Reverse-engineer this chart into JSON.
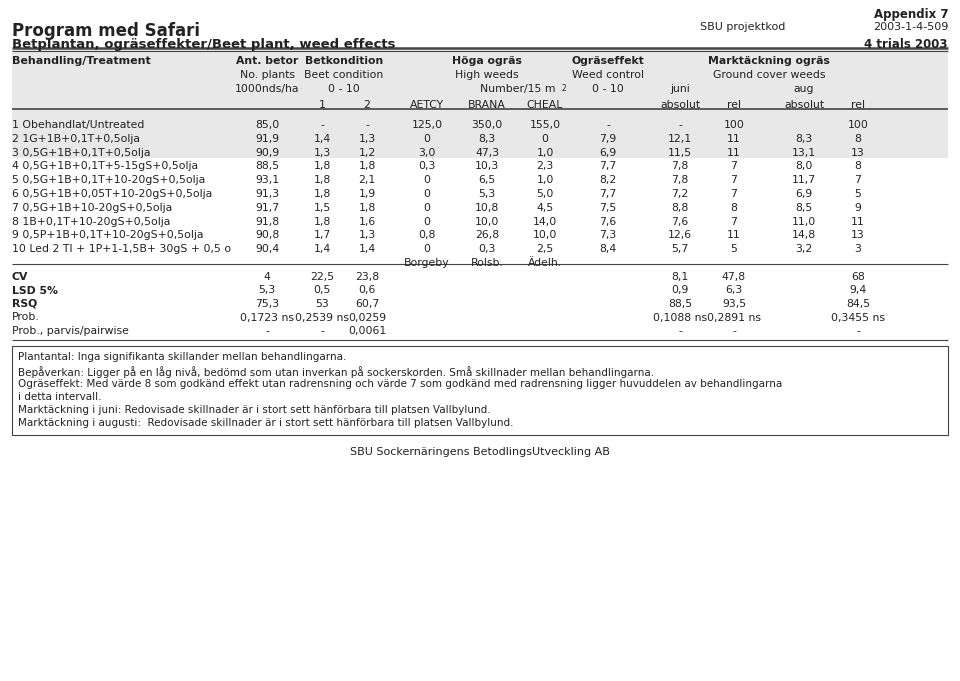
{
  "title_left": "Program med Safari",
  "subtitle_left": "Betplantan, ogräseffekter/Beet plant, weed effects",
  "top_right1": "Appendix 7",
  "top_right2_label": "SBU projektkod",
  "top_right2_value": "2003-1-4-509",
  "top_right3": "4 trials 2003",
  "col_headers": [
    [
      "Ant. betor",
      "Betkondition",
      "Höga ogräs",
      "Ogräseffekt",
      "Marktäckning ogräs"
    ],
    [
      "No. plants",
      "Beet condition",
      "High weeds",
      "Weed control",
      "Ground cover weeds"
    ],
    [
      "1000nds/ha",
      "0 - 10",
      "Number/15 m²",
      "0 - 10",
      "juni",
      "aug"
    ]
  ],
  "subheaders": [
    "1",
    "2",
    "AETCY",
    "BRANA",
    "CHEAL",
    "absolut",
    "rel",
    "absolut",
    "rel"
  ],
  "rows": [
    [
      "1 Obehandlat/Untreated",
      "85,0",
      "-",
      "-",
      "125,0",
      "350,0",
      "155,0",
      "-",
      "-",
      "100",
      "",
      "100"
    ],
    [
      "2 1G+1B+0,1T+0,5olja",
      "91,9",
      "1,4",
      "1,3",
      "0",
      "8,3",
      "0",
      "7,9",
      "12,1",
      "11",
      "8,3",
      "8"
    ],
    [
      "3 0,5G+1B+0,1T+0,5olja",
      "90,9",
      "1,3",
      "1,2",
      "3,0",
      "47,3",
      "1,0",
      "6,9",
      "11,5",
      "11",
      "13,1",
      "13"
    ],
    [
      "4 0,5G+1B+0,1T+5-15gS+0,5olja",
      "88,5",
      "1,8",
      "1,8",
      "0,3",
      "10,3",
      "2,3",
      "7,7",
      "7,8",
      "7",
      "8,0",
      "8"
    ],
    [
      "5 0,5G+1B+0,1T+10-20gS+0,5olja",
      "93,1",
      "1,8",
      "2,1",
      "0",
      "6,5",
      "1,0",
      "8,2",
      "7,8",
      "7",
      "11,7",
      "7"
    ],
    [
      "6 0,5G+1B+0,05T+10-20gS+0,5olja",
      "91,3",
      "1,8",
      "1,9",
      "0",
      "5,3",
      "5,0",
      "7,7",
      "7,2",
      "7",
      "6,9",
      "5"
    ],
    [
      "7 0,5G+1B+10-20gS+0,5olja",
      "91,7",
      "1,5",
      "1,8",
      "0",
      "10,8",
      "4,5",
      "7,5",
      "8,8",
      "8",
      "8,5",
      "9"
    ],
    [
      "8 1B+0,1T+10-20gS+0,5olja",
      "91,8",
      "1,8",
      "1,6",
      "0",
      "10,0",
      "14,0",
      "7,6",
      "7,6",
      "7",
      "11,0",
      "11"
    ],
    [
      "9 0,5P+1B+0,1T+10-20gS+0,5olja",
      "90,8",
      "1,7",
      "1,3",
      "0,8",
      "26,8",
      "10,0",
      "7,3",
      "12,6",
      "11",
      "14,8",
      "13"
    ],
    [
      "10 Led 2 TI + 1P+1-1,5B+ 30gS + 0,5 o",
      "90,4",
      "1,4",
      "1,4",
      "0",
      "0,3",
      "2,5",
      "8,4",
      "5,7",
      "5",
      "3,2",
      "3"
    ]
  ],
  "borgeby_label": "Borgeby",
  "rolsb_label": "Rolsb.",
  "adelh_label": "Ädelh.",
  "stats": [
    [
      "CV",
      "4",
      "22,5",
      "23,8",
      "",
      "",
      "",
      "",
      "8,1",
      "47,8",
      "",
      "68"
    ],
    [
      "LSD 5%",
      "5,3",
      "0,5",
      "0,6",
      "",
      "",
      "",
      "",
      "0,9",
      "6,3",
      "",
      "9,4"
    ],
    [
      "RSQ",
      "75,3",
      "53",
      "60,7",
      "",
      "",
      "",
      "",
      "88,5",
      "93,5",
      "",
      "84,5"
    ],
    [
      "Prob.",
      "0,1723 ns",
      "0,2539 ns",
      "0,0259",
      "",
      "",
      "",
      "",
      "0,1088 ns",
      "0,2891 ns",
      "",
      "0,3455 ns"
    ],
    [
      "Prob., parvis/pairwise",
      "-",
      "-",
      "0,0061",
      "",
      "",
      "",
      "",
      "-",
      "-",
      "",
      "-"
    ]
  ],
  "stats_bold": [
    true,
    true,
    true,
    false,
    false
  ],
  "footer_box_text": [
    "Plantantal: Inga signifikanta skillander mellan behandlingarna.",
    "Bepåverkan: Ligger på en låg nivå, bedömd som utan inverkan på sockerskorden. Små skillnader mellan behandlingarna.",
    "Ogräseffekt: Med värde 8 som godkänd effekt utan radrensning och värde 7 som godkänd med radrensning ligger huvuddelen av behandlingarna",
    "i detta intervall.",
    "Marktäckning i juni: Redovisade skillnader är i stort sett hänförbara till platsen Vallbylund.",
    "Marktäckning i augusti:  Redovisade skillnader är i stort sett hänförbara till platsen Vallbylund."
  ],
  "footer_center": "SBU Sockernäringens BetodlingsUtveckling AB"
}
